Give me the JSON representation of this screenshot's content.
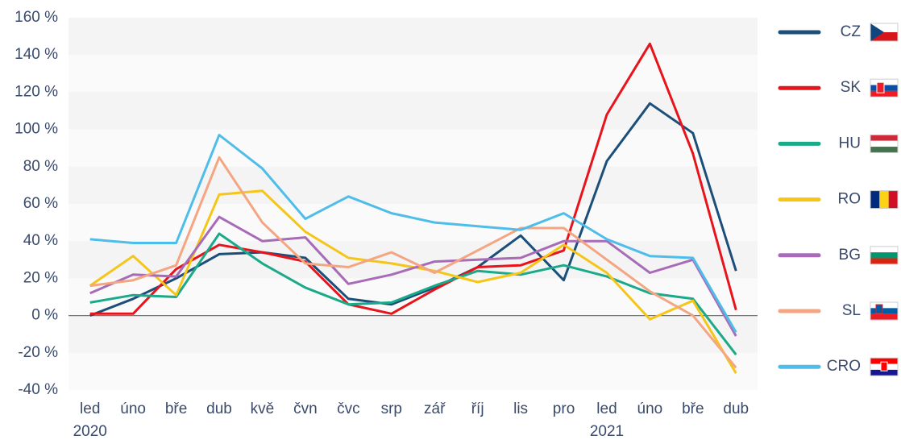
{
  "chart_data": {
    "type": "line",
    "categories": [
      "led",
      "úno",
      "bře",
      "dub",
      "kvě",
      "čvn",
      "čvc",
      "srp",
      "zář",
      "říj",
      "lis",
      "pro",
      "led",
      "úno",
      "bře",
      "dub"
    ],
    "x_groups": [
      {
        "label": "2020",
        "start": 0
      },
      {
        "label": "2021",
        "start": 12
      }
    ],
    "ylim": [
      -40,
      160
    ],
    "yticks": [
      {
        "value": -40,
        "label": "-40 %"
      },
      {
        "value": -20,
        "label": "-20 %"
      },
      {
        "value": 0,
        "label": "0 %"
      },
      {
        "value": 20,
        "label": "20 %"
      },
      {
        "value": 40,
        "label": "40 %"
      },
      {
        "value": 60,
        "label": "60 %"
      },
      {
        "value": 80,
        "label": "80 %"
      },
      {
        "value": 100,
        "label": "100 %"
      },
      {
        "value": 120,
        "label": "120 %"
      },
      {
        "value": 140,
        "label": "140 %"
      },
      {
        "value": 160,
        "label": "160 %"
      }
    ],
    "legend": "right",
    "series": [
      {
        "name": "CZ",
        "color": "#1b4f7a",
        "values": [
          0,
          9,
          20,
          33,
          34,
          31,
          9,
          6,
          15,
          26,
          43,
          19,
          83,
          114,
          98,
          24
        ]
      },
      {
        "name": "SK",
        "color": "#e8141c",
        "values": [
          1,
          1,
          25,
          38,
          34,
          29,
          6,
          1,
          14,
          26,
          27,
          35,
          108,
          146,
          87,
          3
        ]
      },
      {
        "name": "HU",
        "color": "#1aaa8a",
        "values": [
          7,
          11,
          10,
          44,
          28,
          15,
          6,
          7,
          16,
          24,
          22,
          27,
          21,
          12,
          9,
          -21
        ]
      },
      {
        "name": "RO",
        "color": "#f5c518",
        "values": [
          16,
          32,
          11,
          65,
          67,
          45,
          31,
          28,
          24,
          18,
          23,
          38,
          23,
          -2,
          8,
          -31
        ]
      },
      {
        "name": "BG",
        "color": "#a76bb8",
        "values": [
          12,
          22,
          21,
          53,
          40,
          42,
          17,
          22,
          29,
          30,
          31,
          40,
          40,
          23,
          30,
          -11
        ]
      },
      {
        "name": "SL",
        "color": "#f4a582",
        "values": [
          16,
          19,
          27,
          85,
          50,
          28,
          26,
          34,
          23,
          35,
          47,
          47,
          30,
          13,
          0,
          -28
        ]
      },
      {
        "name": "CRO",
        "color": "#4fbde9",
        "values": [
          41,
          39,
          39,
          97,
          79,
          52,
          64,
          55,
          50,
          48,
          46,
          55,
          41,
          32,
          31,
          -9
        ]
      }
    ]
  }
}
